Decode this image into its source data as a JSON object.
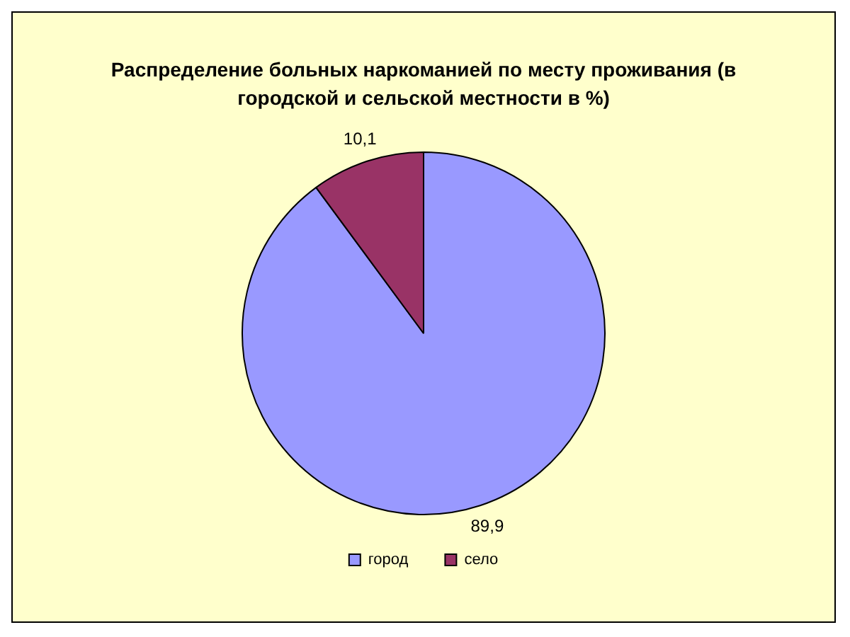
{
  "chart_data": {
    "type": "pie",
    "title": "Распределение больных наркоманией по месту проживания (в городской и сельской местности в %)",
    "categories": [
      "город",
      "село"
    ],
    "values": [
      89.9,
      10.1
    ],
    "value_labels": [
      "89,9",
      "10,1"
    ],
    "colors": [
      "#9999ff",
      "#993366"
    ],
    "legend": "bottom"
  }
}
